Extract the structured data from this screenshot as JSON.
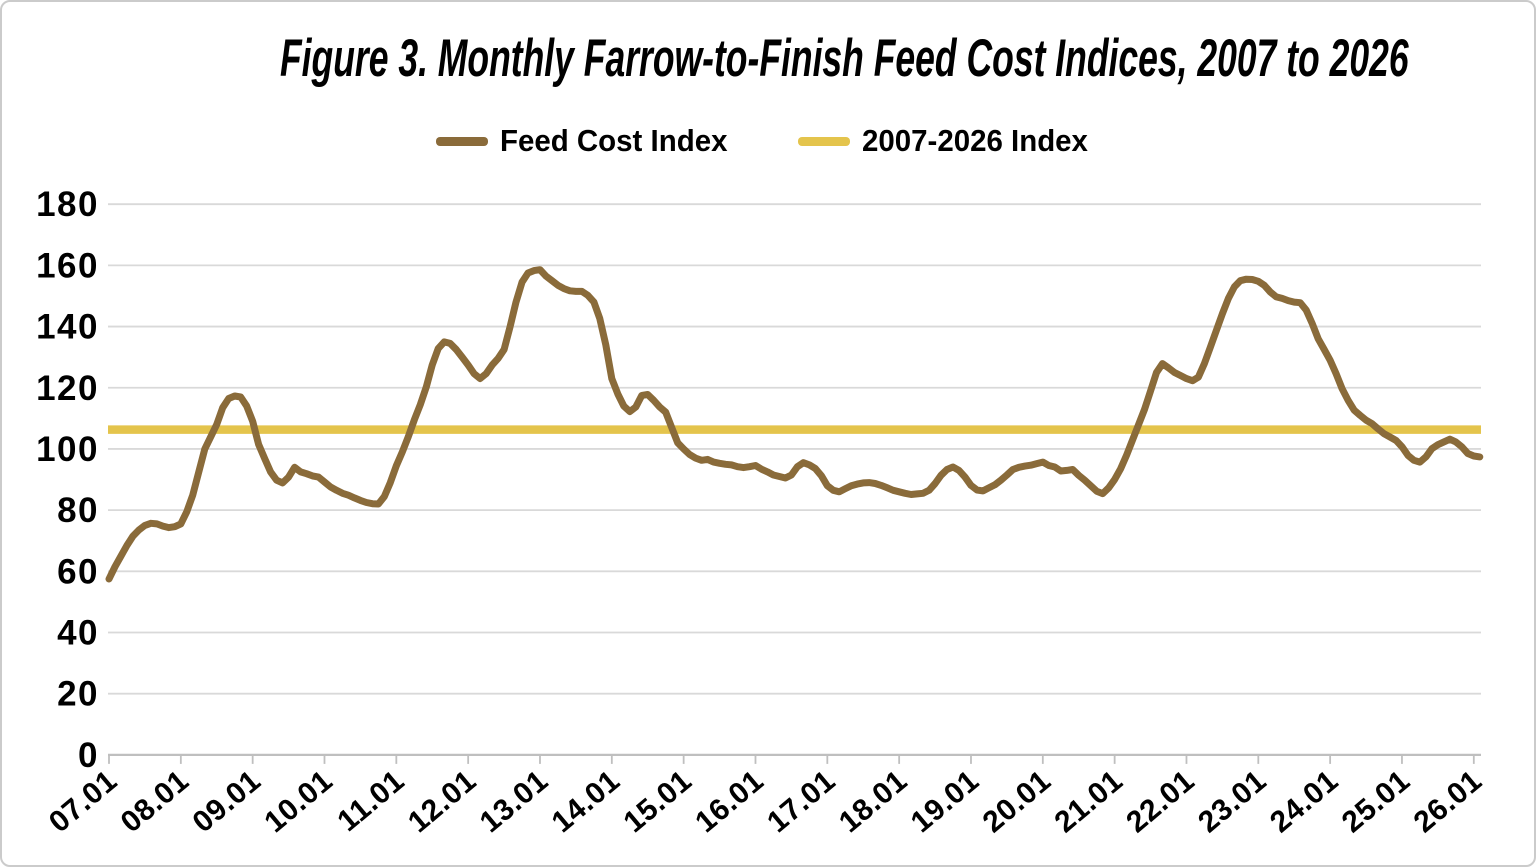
{
  "figure": {
    "title": "Figure 3.  Monthly Farrow-to-Finish Feed Cost Indices, 2007 to 2026"
  },
  "legend": [
    {
      "label": "Feed Cost Index",
      "color": "#8A6B3A"
    },
    {
      "label": "2007-2026 Index",
      "color": "#E4C44C"
    }
  ],
  "colors": {
    "gridline": "#D9D9D9",
    "axis": "#BFBFBF",
    "text": "#000000",
    "background": "#FFFFFF"
  },
  "chart_data": {
    "type": "line",
    "title": "Figure 3.  Monthly Farrow-to-Finish Feed Cost Indices, 2007 to 2026",
    "xlabel": "",
    "ylabel": "",
    "ylim": [
      0,
      180
    ],
    "y_ticks": [
      0,
      20,
      40,
      60,
      80,
      100,
      120,
      140,
      160,
      180
    ],
    "grid": "horizontal",
    "legend_position": "top",
    "x_start": "2007-01",
    "x_interval": "1 month",
    "n_points": 230,
    "x_tick_labels": [
      "07.01",
      "08.01",
      "09.01",
      "10.01",
      "11.01",
      "12.01",
      "13.01",
      "14.01",
      "15.01",
      "16.01",
      "17.01",
      "18.01",
      "19.01",
      "20.01",
      "21.01",
      "22.01",
      "23.01",
      "24.01",
      "25.01",
      "26.01"
    ],
    "series": [
      {
        "name": "Feed Cost Index",
        "color": "#8A6B3A",
        "values": [
          57.5,
          61.5,
          65.0,
          68.5,
          71.5,
          73.5,
          75.0,
          75.7,
          75.5,
          74.8,
          74.3,
          74.6,
          75.5,
          79.5,
          85.0,
          92.5,
          100.0,
          104.0,
          108.0,
          113.5,
          116.5,
          117.3,
          117.0,
          114.0,
          109.0,
          101.5,
          96.9,
          92.5,
          89.8,
          88.9,
          90.8,
          94.0,
          92.5,
          91.9,
          91.2,
          90.8,
          89.2,
          87.6,
          86.5,
          85.5,
          84.9,
          84.0,
          83.2,
          82.5,
          82.1,
          82.0,
          84.5,
          89.0,
          94.5,
          99.0,
          104.0,
          109.5,
          114.5,
          120.3,
          127.4,
          132.8,
          135.0,
          134.5,
          132.5,
          130.0,
          127.4,
          124.6,
          123.0,
          124.6,
          127.4,
          129.6,
          132.5,
          140.0,
          148.0,
          154.5,
          157.5,
          158.3,
          158.6,
          156.5,
          155.0,
          153.5,
          152.4,
          151.7,
          151.5,
          151.5,
          150.2,
          148.0,
          142.6,
          134.0,
          123.0,
          118.0,
          114.0,
          112.2,
          113.7,
          117.5,
          117.8,
          115.9,
          113.7,
          112.0,
          107.0,
          102.0,
          100.0,
          98.2,
          97.0,
          96.3,
          96.6,
          95.7,
          95.3,
          95.0,
          94.8,
          94.2,
          93.9,
          94.2,
          94.6,
          93.4,
          92.5,
          91.5,
          91.0,
          90.5,
          91.5,
          94.2,
          95.5,
          94.8,
          93.6,
          91.3,
          88.0,
          86.5,
          86.0,
          87.0,
          88.0,
          88.5,
          88.9,
          89.0,
          88.7,
          88.1,
          87.3,
          86.5,
          86.0,
          85.5,
          85.1,
          85.3,
          85.5,
          86.5,
          88.7,
          91.4,
          93.3,
          94.1,
          93.0,
          90.8,
          88.1,
          86.6,
          86.3,
          87.3,
          88.3,
          89.8,
          91.5,
          93.3,
          94.0,
          94.4,
          94.7,
          95.2,
          95.7,
          94.6,
          94.1,
          92.8,
          93.0,
          93.3,
          91.4,
          89.8,
          88.0,
          86.2,
          85.4,
          87.3,
          90.0,
          93.5,
          98.0,
          103.0,
          108.0,
          113.0,
          119.0,
          125.0,
          127.9,
          126.5,
          125.0,
          124.0,
          123.0,
          122.3,
          123.5,
          127.9,
          133.3,
          138.8,
          144.2,
          149.2,
          153.0,
          155.0,
          155.5,
          155.4,
          154.8,
          153.5,
          151.3,
          149.7,
          149.2,
          148.5,
          148.0,
          147.8,
          145.4,
          141.0,
          136.0,
          132.5,
          129.0,
          124.6,
          119.7,
          115.9,
          112.7,
          111.0,
          109.4,
          108.3,
          106.6,
          105.0,
          103.9,
          102.8,
          100.7,
          97.9,
          96.3,
          95.7,
          97.4,
          100.1,
          101.4,
          102.3,
          103.2,
          102.3,
          100.7,
          98.5,
          97.7,
          97.4
        ]
      },
      {
        "name": "2007-2026 Index",
        "type": "reference_line",
        "color": "#E4C44C",
        "value": 106.3
      }
    ]
  }
}
